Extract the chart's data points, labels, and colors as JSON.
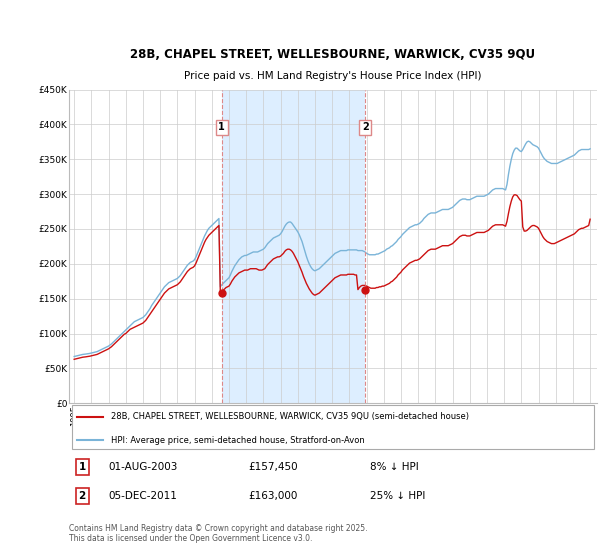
{
  "title_line1": "28B, CHAPEL STREET, WELLESBOURNE, WARWICK, CV35 9QU",
  "title_line2": "Price paid vs. HM Land Registry's House Price Index (HPI)",
  "ylim": [
    0,
    450000
  ],
  "yticks": [
    0,
    50000,
    100000,
    150000,
    200000,
    250000,
    300000,
    350000,
    400000,
    450000
  ],
  "ytick_labels": [
    "£0",
    "£50K",
    "£100K",
    "£150K",
    "£200K",
    "£250K",
    "£300K",
    "£350K",
    "£400K",
    "£450K"
  ],
  "hpi_color": "#7ab4d8",
  "price_color": "#cc1111",
  "vline_color": "#dd8888",
  "shade_color": "#ddeeff",
  "background_color": "#ffffff",
  "plot_bg_color": "#ffffff",
  "grid_color": "#cccccc",
  "legend_label_price": "28B, CHAPEL STREET, WELLESBOURNE, WARWICK, CV35 9QU (semi-detached house)",
  "legend_label_hpi": "HPI: Average price, semi-detached house, Stratford-on-Avon",
  "transaction1_label": "1",
  "transaction1_date": "01-AUG-2003",
  "transaction1_price": "£157,450",
  "transaction1_hpi": "8% ↓ HPI",
  "transaction1_year": 2003.58,
  "transaction1_price_val": 157450,
  "transaction2_label": "2",
  "transaction2_date": "05-DEC-2011",
  "transaction2_price": "£163,000",
  "transaction2_hpi": "25% ↓ HPI",
  "transaction2_year": 2011.92,
  "transaction2_price_val": 163000,
  "footer": "Contains HM Land Registry data © Crown copyright and database right 2025.\nThis data is licensed under the Open Government Licence v3.0.",
  "hpi_data_x": [
    1995.0,
    1995.083,
    1995.167,
    1995.25,
    1995.333,
    1995.417,
    1995.5,
    1995.583,
    1995.667,
    1995.75,
    1995.833,
    1995.917,
    1996.0,
    1996.083,
    1996.167,
    1996.25,
    1996.333,
    1996.417,
    1996.5,
    1996.583,
    1996.667,
    1996.75,
    1996.833,
    1996.917,
    1997.0,
    1997.083,
    1997.167,
    1997.25,
    1997.333,
    1997.417,
    1997.5,
    1997.583,
    1997.667,
    1997.75,
    1997.833,
    1997.917,
    1998.0,
    1998.083,
    1998.167,
    1998.25,
    1998.333,
    1998.417,
    1998.5,
    1998.583,
    1998.667,
    1998.75,
    1998.833,
    1998.917,
    1999.0,
    1999.083,
    1999.167,
    1999.25,
    1999.333,
    1999.417,
    1999.5,
    1999.583,
    1999.667,
    1999.75,
    1999.833,
    1999.917,
    2000.0,
    2000.083,
    2000.167,
    2000.25,
    2000.333,
    2000.417,
    2000.5,
    2000.583,
    2000.667,
    2000.75,
    2000.833,
    2000.917,
    2001.0,
    2001.083,
    2001.167,
    2001.25,
    2001.333,
    2001.417,
    2001.5,
    2001.583,
    2001.667,
    2001.75,
    2001.833,
    2001.917,
    2002.0,
    2002.083,
    2002.167,
    2002.25,
    2002.333,
    2002.417,
    2002.5,
    2002.583,
    2002.667,
    2002.75,
    2002.833,
    2002.917,
    2003.0,
    2003.083,
    2003.167,
    2003.25,
    2003.333,
    2003.417,
    2003.5,
    2003.583,
    2003.667,
    2003.75,
    2003.833,
    2003.917,
    2004.0,
    2004.083,
    2004.167,
    2004.25,
    2004.333,
    2004.417,
    2004.5,
    2004.583,
    2004.667,
    2004.75,
    2004.833,
    2004.917,
    2005.0,
    2005.083,
    2005.167,
    2005.25,
    2005.333,
    2005.417,
    2005.5,
    2005.583,
    2005.667,
    2005.75,
    2005.833,
    2005.917,
    2006.0,
    2006.083,
    2006.167,
    2006.25,
    2006.333,
    2006.417,
    2006.5,
    2006.583,
    2006.667,
    2006.75,
    2006.833,
    2006.917,
    2007.0,
    2007.083,
    2007.167,
    2007.25,
    2007.333,
    2007.417,
    2007.5,
    2007.583,
    2007.667,
    2007.75,
    2007.833,
    2007.917,
    2008.0,
    2008.083,
    2008.167,
    2008.25,
    2008.333,
    2008.417,
    2008.5,
    2008.583,
    2008.667,
    2008.75,
    2008.833,
    2008.917,
    2009.0,
    2009.083,
    2009.167,
    2009.25,
    2009.333,
    2009.417,
    2009.5,
    2009.583,
    2009.667,
    2009.75,
    2009.833,
    2009.917,
    2010.0,
    2010.083,
    2010.167,
    2010.25,
    2010.333,
    2010.417,
    2010.5,
    2010.583,
    2010.667,
    2010.75,
    2010.833,
    2010.917,
    2011.0,
    2011.083,
    2011.167,
    2011.25,
    2011.333,
    2011.417,
    2011.5,
    2011.583,
    2011.667,
    2011.75,
    2011.833,
    2011.917,
    2012.0,
    2012.083,
    2012.167,
    2012.25,
    2012.333,
    2012.417,
    2012.5,
    2012.583,
    2012.667,
    2012.75,
    2012.833,
    2012.917,
    2013.0,
    2013.083,
    2013.167,
    2013.25,
    2013.333,
    2013.417,
    2013.5,
    2013.583,
    2013.667,
    2013.75,
    2013.833,
    2013.917,
    2014.0,
    2014.083,
    2014.167,
    2014.25,
    2014.333,
    2014.417,
    2014.5,
    2014.583,
    2014.667,
    2014.75,
    2014.833,
    2014.917,
    2015.0,
    2015.083,
    2015.167,
    2015.25,
    2015.333,
    2015.417,
    2015.5,
    2015.583,
    2015.667,
    2015.75,
    2015.833,
    2015.917,
    2016.0,
    2016.083,
    2016.167,
    2016.25,
    2016.333,
    2016.417,
    2016.5,
    2016.583,
    2016.667,
    2016.75,
    2016.833,
    2016.917,
    2017.0,
    2017.083,
    2017.167,
    2017.25,
    2017.333,
    2017.417,
    2017.5,
    2017.583,
    2017.667,
    2017.75,
    2017.833,
    2017.917,
    2018.0,
    2018.083,
    2018.167,
    2018.25,
    2018.333,
    2018.417,
    2018.5,
    2018.583,
    2018.667,
    2018.75,
    2018.833,
    2018.917,
    2019.0,
    2019.083,
    2019.167,
    2019.25,
    2019.333,
    2019.417,
    2019.5,
    2019.583,
    2019.667,
    2019.75,
    2019.833,
    2019.917,
    2020.0,
    2020.083,
    2020.167,
    2020.25,
    2020.333,
    2020.417,
    2020.5,
    2020.583,
    2020.667,
    2020.75,
    2020.833,
    2020.917,
    2021.0,
    2021.083,
    2021.167,
    2021.25,
    2021.333,
    2021.417,
    2021.5,
    2021.583,
    2021.667,
    2021.75,
    2021.833,
    2021.917,
    2022.0,
    2022.083,
    2022.167,
    2022.25,
    2022.333,
    2022.417,
    2022.5,
    2022.583,
    2022.667,
    2022.75,
    2022.833,
    2022.917,
    2023.0,
    2023.083,
    2023.167,
    2023.25,
    2023.333,
    2023.417,
    2023.5,
    2023.583,
    2023.667,
    2023.75,
    2023.833,
    2023.917,
    2024.0,
    2024.083,
    2024.167,
    2024.25,
    2024.333,
    2024.417,
    2024.5,
    2024.583,
    2024.667,
    2024.75,
    2024.833,
    2024.917,
    2025.0
  ],
  "hpi_data_y": [
    67000,
    67500,
    68000,
    68500,
    69000,
    69500,
    70000,
    70200,
    70500,
    70800,
    71000,
    71500,
    72000,
    72500,
    73000,
    73500,
    74000,
    75000,
    76000,
    77000,
    78000,
    79000,
    80000,
    81000,
    82000,
    83500,
    85000,
    87000,
    89000,
    91000,
    93000,
    95000,
    97000,
    99000,
    101000,
    103000,
    105000,
    107000,
    109000,
    111000,
    113000,
    115000,
    117000,
    118000,
    119000,
    120000,
    121000,
    122000,
    123000,
    125000,
    127000,
    130000,
    133000,
    136000,
    140000,
    143000,
    146000,
    149000,
    152000,
    155000,
    158000,
    161000,
    164000,
    167000,
    169000,
    171000,
    173000,
    174000,
    175000,
    176000,
    177000,
    178000,
    179000,
    181000,
    183000,
    186000,
    189000,
    192000,
    195000,
    198000,
    200000,
    202000,
    203000,
    204000,
    206000,
    210000,
    215000,
    220000,
    225000,
    230000,
    235000,
    240000,
    244000,
    248000,
    251000,
    253000,
    255000,
    257000,
    259000,
    261000,
    263000,
    265000,
    167000,
    170000,
    172000,
    174000,
    176000,
    178000,
    180000,
    184000,
    189000,
    193000,
    197000,
    200000,
    203000,
    206000,
    208000,
    210000,
    211000,
    212000,
    212000,
    213000,
    214000,
    215000,
    216000,
    217000,
    217000,
    217000,
    217000,
    218000,
    219000,
    220000,
    221000,
    223000,
    226000,
    229000,
    231000,
    233000,
    235000,
    237000,
    238000,
    239000,
    240000,
    241000,
    243000,
    246000,
    250000,
    254000,
    257000,
    259000,
    260000,
    260000,
    258000,
    255000,
    252000,
    249000,
    246000,
    242000,
    237000,
    232000,
    225000,
    218000,
    211000,
    205000,
    200000,
    196000,
    193000,
    191000,
    190000,
    191000,
    192000,
    193000,
    195000,
    197000,
    199000,
    201000,
    203000,
    205000,
    207000,
    209000,
    211000,
    213000,
    215000,
    216000,
    217000,
    218000,
    219000,
    219000,
    219000,
    219000,
    219000,
    220000,
    220000,
    220000,
    220000,
    220000,
    220000,
    220000,
    219000,
    219000,
    219000,
    219000,
    218000,
    217000,
    215000,
    214000,
    213000,
    213000,
    213000,
    213000,
    213000,
    214000,
    214000,
    215000,
    216000,
    217000,
    218000,
    219000,
    221000,
    222000,
    223000,
    225000,
    226000,
    228000,
    230000,
    232000,
    235000,
    237000,
    239000,
    242000,
    244000,
    246000,
    248000,
    250000,
    252000,
    253000,
    254000,
    255000,
    256000,
    256000,
    257000,
    258000,
    260000,
    262000,
    265000,
    267000,
    269000,
    271000,
    272000,
    273000,
    273000,
    273000,
    273000,
    274000,
    275000,
    276000,
    277000,
    278000,
    278000,
    278000,
    278000,
    278000,
    279000,
    280000,
    281000,
    283000,
    285000,
    287000,
    289000,
    291000,
    292000,
    293000,
    293000,
    293000,
    292000,
    292000,
    292000,
    293000,
    294000,
    295000,
    296000,
    297000,
    297000,
    297000,
    297000,
    297000,
    297000,
    298000,
    299000,
    300000,
    302000,
    304000,
    306000,
    307000,
    308000,
    308000,
    308000,
    308000,
    308000,
    308000,
    307000,
    306000,
    314000,
    328000,
    340000,
    350000,
    358000,
    363000,
    366000,
    366000,
    364000,
    362000,
    361000,
    364000,
    368000,
    372000,
    375000,
    376000,
    375000,
    373000,
    371000,
    370000,
    369000,
    368000,
    366000,
    362000,
    358000,
    354000,
    351000,
    349000,
    347000,
    346000,
    345000,
    344000,
    344000,
    344000,
    344000,
    344000,
    345000,
    346000,
    347000,
    348000,
    349000,
    350000,
    351000,
    352000,
    353000,
    354000,
    355000,
    356000,
    358000,
    360000,
    362000,
    363000,
    364000,
    364000,
    364000,
    364000,
    364000,
    364000,
    365000
  ],
  "price_data_x": [
    1995.0,
    1995.083,
    1995.167,
    1995.25,
    1995.333,
    1995.417,
    1995.5,
    1995.583,
    1995.667,
    1995.75,
    1995.833,
    1995.917,
    1996.0,
    1996.083,
    1996.167,
    1996.25,
    1996.333,
    1996.417,
    1996.5,
    1996.583,
    1996.667,
    1996.75,
    1996.833,
    1996.917,
    1997.0,
    1997.083,
    1997.167,
    1997.25,
    1997.333,
    1997.417,
    1997.5,
    1997.583,
    1997.667,
    1997.75,
    1997.833,
    1997.917,
    1998.0,
    1998.083,
    1998.167,
    1998.25,
    1998.333,
    1998.417,
    1998.5,
    1998.583,
    1998.667,
    1998.75,
    1998.833,
    1998.917,
    1999.0,
    1999.083,
    1999.167,
    1999.25,
    1999.333,
    1999.417,
    1999.5,
    1999.583,
    1999.667,
    1999.75,
    1999.833,
    1999.917,
    2000.0,
    2000.083,
    2000.167,
    2000.25,
    2000.333,
    2000.417,
    2000.5,
    2000.583,
    2000.667,
    2000.75,
    2000.833,
    2000.917,
    2001.0,
    2001.083,
    2001.167,
    2001.25,
    2001.333,
    2001.417,
    2001.5,
    2001.583,
    2001.667,
    2001.75,
    2001.833,
    2001.917,
    2002.0,
    2002.083,
    2002.167,
    2002.25,
    2002.333,
    2002.417,
    2002.5,
    2002.583,
    2002.667,
    2002.75,
    2002.833,
    2002.917,
    2003.0,
    2003.083,
    2003.167,
    2003.25,
    2003.333,
    2003.417,
    2003.5,
    2003.583,
    2003.667,
    2003.75,
    2003.833,
    2003.917,
    2004.0,
    2004.083,
    2004.167,
    2004.25,
    2004.333,
    2004.417,
    2004.5,
    2004.583,
    2004.667,
    2004.75,
    2004.833,
    2004.917,
    2005.0,
    2005.083,
    2005.167,
    2005.25,
    2005.333,
    2005.417,
    2005.5,
    2005.583,
    2005.667,
    2005.75,
    2005.833,
    2005.917,
    2006.0,
    2006.083,
    2006.167,
    2006.25,
    2006.333,
    2006.417,
    2006.5,
    2006.583,
    2006.667,
    2006.75,
    2006.833,
    2006.917,
    2007.0,
    2007.083,
    2007.167,
    2007.25,
    2007.333,
    2007.417,
    2007.5,
    2007.583,
    2007.667,
    2007.75,
    2007.833,
    2007.917,
    2008.0,
    2008.083,
    2008.167,
    2008.25,
    2008.333,
    2008.417,
    2008.5,
    2008.583,
    2008.667,
    2008.75,
    2008.833,
    2008.917,
    2009.0,
    2009.083,
    2009.167,
    2009.25,
    2009.333,
    2009.417,
    2009.5,
    2009.583,
    2009.667,
    2009.75,
    2009.833,
    2009.917,
    2010.0,
    2010.083,
    2010.167,
    2010.25,
    2010.333,
    2010.417,
    2010.5,
    2010.583,
    2010.667,
    2010.75,
    2010.833,
    2010.917,
    2011.0,
    2011.083,
    2011.167,
    2011.25,
    2011.333,
    2011.417,
    2011.5,
    2011.583,
    2011.667,
    2011.75,
    2011.833,
    2011.917,
    2012.0,
    2012.083,
    2012.167,
    2012.25,
    2012.333,
    2012.417,
    2012.5,
    2012.583,
    2012.667,
    2012.75,
    2012.833,
    2012.917,
    2013.0,
    2013.083,
    2013.167,
    2013.25,
    2013.333,
    2013.417,
    2013.5,
    2013.583,
    2013.667,
    2013.75,
    2013.833,
    2013.917,
    2014.0,
    2014.083,
    2014.167,
    2014.25,
    2014.333,
    2014.417,
    2014.5,
    2014.583,
    2014.667,
    2014.75,
    2014.833,
    2014.917,
    2015.0,
    2015.083,
    2015.167,
    2015.25,
    2015.333,
    2015.417,
    2015.5,
    2015.583,
    2015.667,
    2015.75,
    2015.833,
    2015.917,
    2016.0,
    2016.083,
    2016.167,
    2016.25,
    2016.333,
    2016.417,
    2016.5,
    2016.583,
    2016.667,
    2016.75,
    2016.833,
    2016.917,
    2017.0,
    2017.083,
    2017.167,
    2017.25,
    2017.333,
    2017.417,
    2017.5,
    2017.583,
    2017.667,
    2017.75,
    2017.833,
    2017.917,
    2018.0,
    2018.083,
    2018.167,
    2018.25,
    2018.333,
    2018.417,
    2018.5,
    2018.583,
    2018.667,
    2018.75,
    2018.833,
    2018.917,
    2019.0,
    2019.083,
    2019.167,
    2019.25,
    2019.333,
    2019.417,
    2019.5,
    2019.583,
    2019.667,
    2019.75,
    2019.833,
    2019.917,
    2020.0,
    2020.083,
    2020.167,
    2020.25,
    2020.333,
    2020.417,
    2020.5,
    2020.583,
    2020.667,
    2020.75,
    2020.833,
    2020.917,
    2021.0,
    2021.083,
    2021.167,
    2021.25,
    2021.333,
    2021.417,
    2021.5,
    2021.583,
    2021.667,
    2021.75,
    2021.833,
    2021.917,
    2022.0,
    2022.083,
    2022.167,
    2022.25,
    2022.333,
    2022.417,
    2022.5,
    2022.583,
    2022.667,
    2022.75,
    2022.833,
    2022.917,
    2023.0,
    2023.083,
    2023.167,
    2023.25,
    2023.333,
    2023.417,
    2023.5,
    2023.583,
    2023.667,
    2023.75,
    2023.833,
    2023.917,
    2024.0,
    2024.083,
    2024.167,
    2024.25,
    2024.333,
    2024.417,
    2024.5,
    2024.583,
    2024.667,
    2024.75,
    2024.833,
    2024.917,
    2025.0
  ],
  "price_data_y": [
    63000,
    63500,
    64000,
    64500,
    65000,
    65500,
    66000,
    66200,
    66500,
    66800,
    67000,
    67500,
    68000,
    68500,
    69000,
    69500,
    70000,
    71000,
    72000,
    73000,
    74000,
    75000,
    76000,
    77000,
    78000,
    79500,
    81000,
    83000,
    85000,
    87000,
    89000,
    91000,
    93000,
    95000,
    97000,
    99000,
    100000,
    102000,
    104000,
    106000,
    107000,
    108000,
    109000,
    110000,
    111000,
    112000,
    113000,
    114000,
    115000,
    117000,
    119000,
    122000,
    125000,
    128000,
    131000,
    134000,
    137000,
    140000,
    143000,
    146000,
    149000,
    152000,
    155000,
    158000,
    160000,
    162000,
    164000,
    165000,
    166000,
    167000,
    168000,
    169000,
    170000,
    172000,
    174000,
    177000,
    180000,
    183000,
    186000,
    189000,
    191000,
    193000,
    194000,
    195000,
    197000,
    201000,
    206000,
    211000,
    216000,
    221000,
    226000,
    231000,
    235000,
    238000,
    241000,
    243000,
    245000,
    247000,
    249000,
    251000,
    253000,
    255000,
    157450,
    160000,
    162000,
    164000,
    166000,
    167000,
    168000,
    171000,
    175000,
    178000,
    181000,
    183000,
    185000,
    187000,
    188000,
    189000,
    190000,
    191000,
    191000,
    191000,
    192000,
    193000,
    193000,
    193000,
    193000,
    193000,
    192000,
    191000,
    191000,
    191000,
    192000,
    193000,
    196000,
    199000,
    201000,
    203000,
    205000,
    207000,
    208000,
    209000,
    210000,
    210000,
    211000,
    213000,
    215000,
    218000,
    220000,
    221000,
    221000,
    220000,
    218000,
    215000,
    211000,
    207000,
    203000,
    198000,
    193000,
    188000,
    182000,
    177000,
    172000,
    168000,
    164000,
    161000,
    158000,
    156000,
    155000,
    156000,
    157000,
    158000,
    160000,
    162000,
    164000,
    166000,
    168000,
    170000,
    172000,
    174000,
    176000,
    178000,
    180000,
    181000,
    182000,
    183000,
    184000,
    184000,
    184000,
    184000,
    184000,
    185000,
    185000,
    185000,
    185000,
    185000,
    184000,
    184000,
    163000,
    166000,
    168000,
    169000,
    169000,
    169000,
    168000,
    167000,
    166000,
    165000,
    165000,
    165000,
    165000,
    166000,
    166000,
    167000,
    167000,
    168000,
    168000,
    169000,
    170000,
    171000,
    172000,
    174000,
    175000,
    177000,
    179000,
    181000,
    184000,
    186000,
    188000,
    191000,
    193000,
    195000,
    197000,
    199000,
    201000,
    202000,
    203000,
    204000,
    205000,
    205000,
    206000,
    207000,
    209000,
    211000,
    213000,
    215000,
    217000,
    219000,
    220000,
    221000,
    221000,
    221000,
    221000,
    222000,
    223000,
    224000,
    225000,
    226000,
    226000,
    226000,
    226000,
    226000,
    227000,
    228000,
    229000,
    231000,
    233000,
    235000,
    237000,
    239000,
    240000,
    241000,
    241000,
    241000,
    240000,
    240000,
    240000,
    241000,
    242000,
    243000,
    244000,
    245000,
    245000,
    245000,
    245000,
    245000,
    245000,
    246000,
    247000,
    248000,
    250000,
    252000,
    254000,
    255000,
    256000,
    256000,
    256000,
    256000,
    256000,
    256000,
    255000,
    254000,
    261000,
    272000,
    282000,
    290000,
    296000,
    299000,
    299000,
    298000,
    295000,
    292000,
    290000,
    253000,
    247000,
    247000,
    248000,
    250000,
    252000,
    254000,
    255000,
    255000,
    254000,
    253000,
    251000,
    247000,
    243000,
    239000,
    236000,
    234000,
    232000,
    231000,
    230000,
    229000,
    229000,
    229000,
    230000,
    231000,
    232000,
    233000,
    234000,
    235000,
    236000,
    237000,
    238000,
    239000,
    240000,
    241000,
    242000,
    243000,
    245000,
    247000,
    249000,
    250000,
    251000,
    251000,
    252000,
    253000,
    254000,
    255000,
    264000
  ]
}
